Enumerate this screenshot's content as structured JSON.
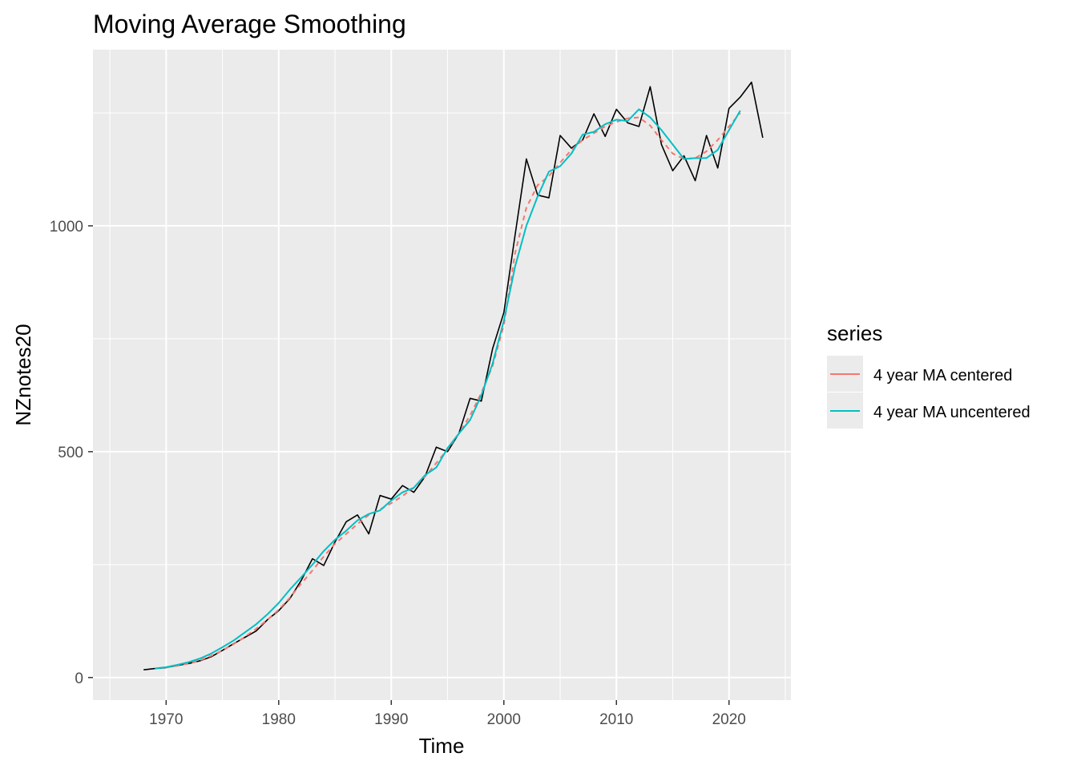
{
  "chart_data": {
    "type": "line",
    "title": "Moving Average Smoothing",
    "xlabel": "Time",
    "ylabel": "NZnotes20",
    "xlim": [
      1963.5,
      2025.5
    ],
    "ylim": [
      -50,
      1390
    ],
    "x_ticks": [
      1970,
      1980,
      1990,
      2000,
      2010,
      2020
    ],
    "x_tick_labels": [
      "1970",
      "1980",
      "1990",
      "2000",
      "2010",
      "2020"
    ],
    "y_ticks": [
      0,
      500,
      1000
    ],
    "y_tick_labels": [
      "0",
      "500",
      "1000"
    ],
    "y_minor_ticks": [
      250,
      750,
      1250
    ],
    "grid": true,
    "legend": {
      "title": "series",
      "position": "right",
      "entries": [
        "4 year MA centered",
        "4 year MA uncentered"
      ]
    },
    "series": [
      {
        "name": "",
        "color": "#000000",
        "style": "solid",
        "x": [
          1968,
          1969,
          1970,
          1971,
          1972,
          1973,
          1974,
          1975,
          1976,
          1977,
          1978,
          1979,
          1980,
          1981,
          1982,
          1983,
          1984,
          1985,
          1986,
          1987,
          1988,
          1989,
          1990,
          1991,
          1992,
          1993,
          1994,
          1995,
          1996,
          1997,
          1998,
          1999,
          2000,
          2001,
          2002,
          2003,
          2004,
          2005,
          2006,
          2007,
          2008,
          2009,
          2010,
          2011,
          2012,
          2013,
          2014,
          2015,
          2016,
          2017,
          2018,
          2019,
          2020,
          2021,
          2022,
          2023
        ],
        "values": [
          17,
          20,
          22,
          27,
          31,
          37,
          46,
          60,
          75,
          89,
          103,
          128,
          148,
          175,
          215,
          263,
          248,
          300,
          345,
          360,
          318,
          403,
          395,
          425,
          410,
          445,
          510,
          500,
          540,
          618,
          612,
          728,
          808,
          980,
          1148,
          1068,
          1062,
          1200,
          1172,
          1190,
          1248,
          1198,
          1258,
          1228,
          1220,
          1308,
          1180,
          1122,
          1155,
          1100,
          1200,
          1128,
          1260,
          1285,
          1318,
          1195
        ]
      },
      {
        "name": "4 year MA centered",
        "color": "#F8766D",
        "style": "dashed",
        "x": [
          1970,
          1971,
          1972,
          1973,
          1974,
          1975,
          1976,
          1977,
          1978,
          1979,
          1980,
          1981,
          1982,
          1983,
          1984,
          1985,
          1986,
          1987,
          1988,
          1989,
          1990,
          1991,
          1992,
          1993,
          1994,
          1995,
          1996,
          1997,
          1998,
          1999,
          2000,
          2001,
          2002,
          2003,
          2004,
          2005,
          2006,
          2007,
          2008,
          2009,
          2010,
          2011,
          2012,
          2013,
          2014,
          2015,
          2016,
          2017,
          2018,
          2019,
          2020,
          2021
        ],
        "values": [
          22,
          26,
          31,
          38,
          48,
          60,
          74,
          90,
          108,
          128,
          150,
          177,
          208,
          237,
          268,
          296,
          318,
          340,
          360,
          372,
          386,
          402,
          420,
          445,
          475,
          505,
          540,
          580,
          630,
          690,
          780,
          940,
          1040,
          1090,
          1110,
          1140,
          1168,
          1190,
          1205,
          1220,
          1230,
          1238,
          1240,
          1222,
          1190,
          1160,
          1148,
          1150,
          1165,
          1190,
          1220,
          1250
        ]
      },
      {
        "name": "4 year MA uncentered",
        "color": "#00BFC4",
        "style": "solid",
        "x": [
          1969,
          1970,
          1971,
          1972,
          1973,
          1974,
          1975,
          1976,
          1977,
          1978,
          1979,
          1980,
          1981,
          1982,
          1983,
          1984,
          1985,
          1986,
          1987,
          1988,
          1989,
          1990,
          1991,
          1992,
          1993,
          1994,
          1995,
          1996,
          1997,
          1998,
          1999,
          2000,
          2001,
          2002,
          2003,
          2004,
          2005,
          2006,
          2007,
          2008,
          2009,
          2010,
          2011,
          2012,
          2013,
          2014,
          2015,
          2016,
          2017,
          2018,
          2019,
          2020,
          2021
        ],
        "values": [
          20,
          23,
          28,
          34,
          42,
          53,
          67,
          82,
          100,
          118,
          140,
          165,
          195,
          222,
          250,
          280,
          305,
          325,
          348,
          362,
          370,
          392,
          410,
          420,
          448,
          465,
          508,
          540,
          570,
          625,
          695,
          790,
          910,
          1000,
          1065,
          1120,
          1132,
          1160,
          1202,
          1208,
          1225,
          1235,
          1232,
          1258,
          1240,
          1212,
          1180,
          1148,
          1150,
          1150,
          1168,
          1212,
          1255
        ]
      }
    ]
  }
}
